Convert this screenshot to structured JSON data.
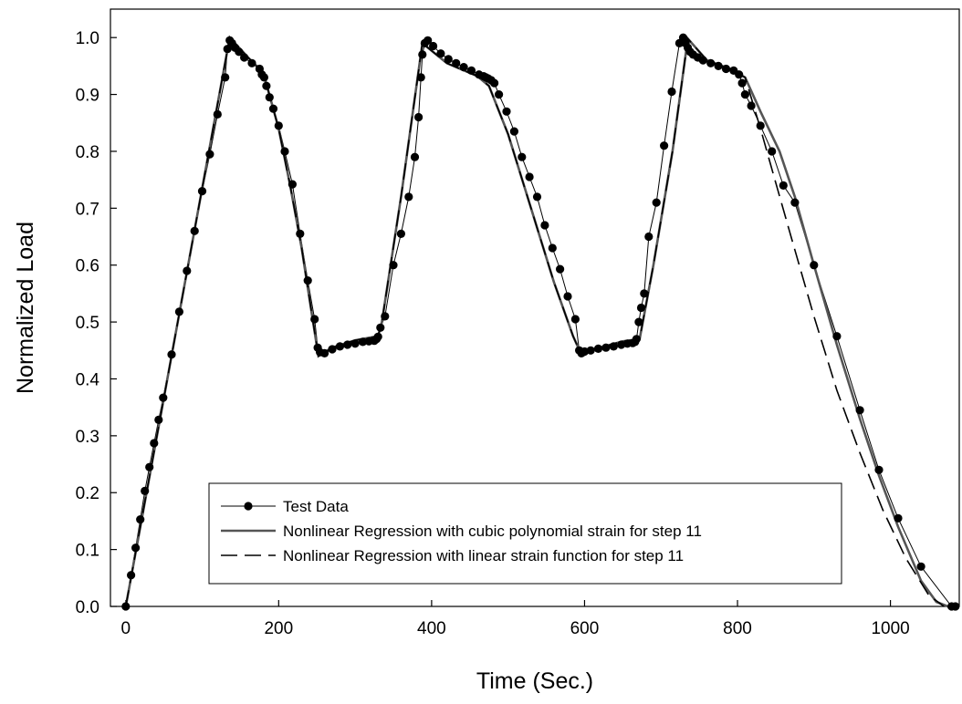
{
  "chart_data": {
    "type": "line",
    "title": "",
    "xlabel": "Time (Sec.)",
    "ylabel": "Normalized Load",
    "xlim": [
      -20,
      1090
    ],
    "ylim": [
      0.0,
      1.05
    ],
    "xticks": [
      0,
      200,
      400,
      600,
      800,
      1000
    ],
    "yticks": [
      0.0,
      0.1,
      0.2,
      0.3,
      0.4,
      0.5,
      0.6,
      0.7,
      0.8,
      0.9,
      1.0
    ],
    "xtick_labels": [
      "0",
      "200",
      "400",
      "600",
      "800",
      "1000"
    ],
    "ytick_labels": [
      "0.0",
      "0.1",
      "0.2",
      "0.3",
      "0.4",
      "0.5",
      "0.6",
      "0.7",
      "0.8",
      "0.9",
      "1.0"
    ],
    "grid": false,
    "legend_position": "lower-left",
    "series": [
      {
        "name": "Test Data",
        "style": "line-markers",
        "color": "#000000",
        "x": [
          0,
          7,
          13,
          19,
          25,
          31,
          37,
          43,
          49,
          60,
          70,
          80,
          90,
          100,
          110,
          120,
          130,
          133,
          136,
          139,
          143,
          148,
          155,
          165,
          175,
          178,
          181,
          184,
          188,
          193,
          200,
          208,
          218,
          228,
          238,
          247,
          251,
          254,
          260,
          270,
          280,
          290,
          300,
          310,
          318,
          325,
          328,
          330,
          333,
          339,
          350,
          360,
          370,
          378,
          383,
          386,
          388,
          391,
          395,
          402,
          412,
          422,
          432,
          442,
          452,
          462,
          468,
          471,
          474,
          478,
          482,
          488,
          498,
          508,
          518,
          528,
          538,
          548,
          558,
          568,
          578,
          588,
          593,
          596,
          600,
          608,
          618,
          628,
          638,
          648,
          656,
          663,
          666,
          668,
          671,
          674,
          678,
          684,
          694,
          704,
          714,
          724,
          729,
          732,
          735,
          738,
          742,
          748,
          755,
          765,
          775,
          785,
          795,
          802,
          806,
          810,
          818,
          830,
          845,
          860,
          875,
          900,
          930,
          960,
          985,
          1010,
          1040,
          1080,
          1085
        ],
        "y": [
          0.0,
          0.055,
          0.103,
          0.153,
          0.203,
          0.245,
          0.287,
          0.328,
          0.367,
          0.443,
          0.518,
          0.59,
          0.66,
          0.73,
          0.795,
          0.865,
          0.93,
          0.98,
          0.995,
          0.99,
          0.982,
          0.975,
          0.965,
          0.955,
          0.945,
          0.935,
          0.93,
          0.915,
          0.895,
          0.875,
          0.845,
          0.8,
          0.742,
          0.655,
          0.573,
          0.505,
          0.455,
          0.447,
          0.445,
          0.452,
          0.457,
          0.46,
          0.462,
          0.465,
          0.466,
          0.467,
          0.47,
          0.474,
          0.49,
          0.51,
          0.6,
          0.655,
          0.72,
          0.79,
          0.86,
          0.93,
          0.97,
          0.99,
          0.995,
          0.985,
          0.972,
          0.962,
          0.955,
          0.948,
          0.942,
          0.935,
          0.932,
          0.93,
          0.928,
          0.925,
          0.92,
          0.9,
          0.87,
          0.835,
          0.79,
          0.755,
          0.72,
          0.67,
          0.63,
          0.593,
          0.545,
          0.505,
          0.45,
          0.445,
          0.448,
          0.45,
          0.453,
          0.455,
          0.457,
          0.46,
          0.462,
          0.463,
          0.465,
          0.47,
          0.5,
          0.525,
          0.55,
          0.65,
          0.71,
          0.81,
          0.905,
          0.99,
          1.0,
          0.99,
          0.982,
          0.975,
          0.97,
          0.965,
          0.96,
          0.955,
          0.95,
          0.945,
          0.942,
          0.935,
          0.92,
          0.9,
          0.88,
          0.845,
          0.8,
          0.74,
          0.71,
          0.6,
          0.475,
          0.345,
          0.24,
          0.155,
          0.07,
          0.0,
          0.0
        ]
      },
      {
        "name": "Nonlinear Regression with cubic polynomial strain for step 11",
        "style": "solid",
        "color": "#555555",
        "x": [
          0,
          136,
          160,
          180,
          200,
          215,
          230,
          245,
          252,
          270,
          300,
          330,
          335,
          360,
          388,
          420,
          460,
          475,
          500,
          530,
          560,
          585,
          595,
          620,
          650,
          672,
          690,
          715,
          735,
          760,
          790,
          810,
          830,
          855,
          875,
          900,
          930,
          960,
          985,
          1010,
          1040,
          1060,
          1075,
          1080,
          1088
        ],
        "y": [
          0.0,
          1.0,
          0.965,
          0.938,
          0.84,
          0.74,
          0.63,
          0.5,
          0.44,
          0.455,
          0.468,
          0.475,
          0.5,
          0.72,
          0.99,
          0.955,
          0.932,
          0.915,
          0.83,
          0.7,
          0.57,
          0.475,
          0.445,
          0.455,
          0.466,
          0.47,
          0.6,
          0.8,
          0.998,
          0.96,
          0.945,
          0.93,
          0.87,
          0.8,
          0.72,
          0.6,
          0.46,
          0.33,
          0.23,
          0.14,
          0.045,
          0.008,
          0.0,
          0.0,
          0.0
        ]
      },
      {
        "name": "Nonlinear Regression with linear strain function for step 11",
        "style": "dashed",
        "color": "#000000",
        "x": [
          0,
          136,
          160,
          180,
          200,
          215,
          230,
          245,
          252,
          270,
          300,
          330,
          335,
          360,
          388,
          420,
          460,
          475,
          500,
          530,
          560,
          585,
          595,
          620,
          650,
          672,
          690,
          715,
          735,
          760,
          790,
          810,
          830,
          850,
          870,
          900,
          930,
          960,
          990,
          1020,
          1050,
          1070
        ],
        "y": [
          0.0,
          1.0,
          0.965,
          0.938,
          0.84,
          0.74,
          0.63,
          0.5,
          0.44,
          0.455,
          0.468,
          0.475,
          0.5,
          0.72,
          0.99,
          0.955,
          0.932,
          0.915,
          0.83,
          0.7,
          0.57,
          0.475,
          0.445,
          0.455,
          0.466,
          0.47,
          0.6,
          0.8,
          0.998,
          0.96,
          0.945,
          0.93,
          0.84,
          0.745,
          0.65,
          0.51,
          0.38,
          0.27,
          0.17,
          0.085,
          0.02,
          0.0
        ]
      }
    ]
  }
}
